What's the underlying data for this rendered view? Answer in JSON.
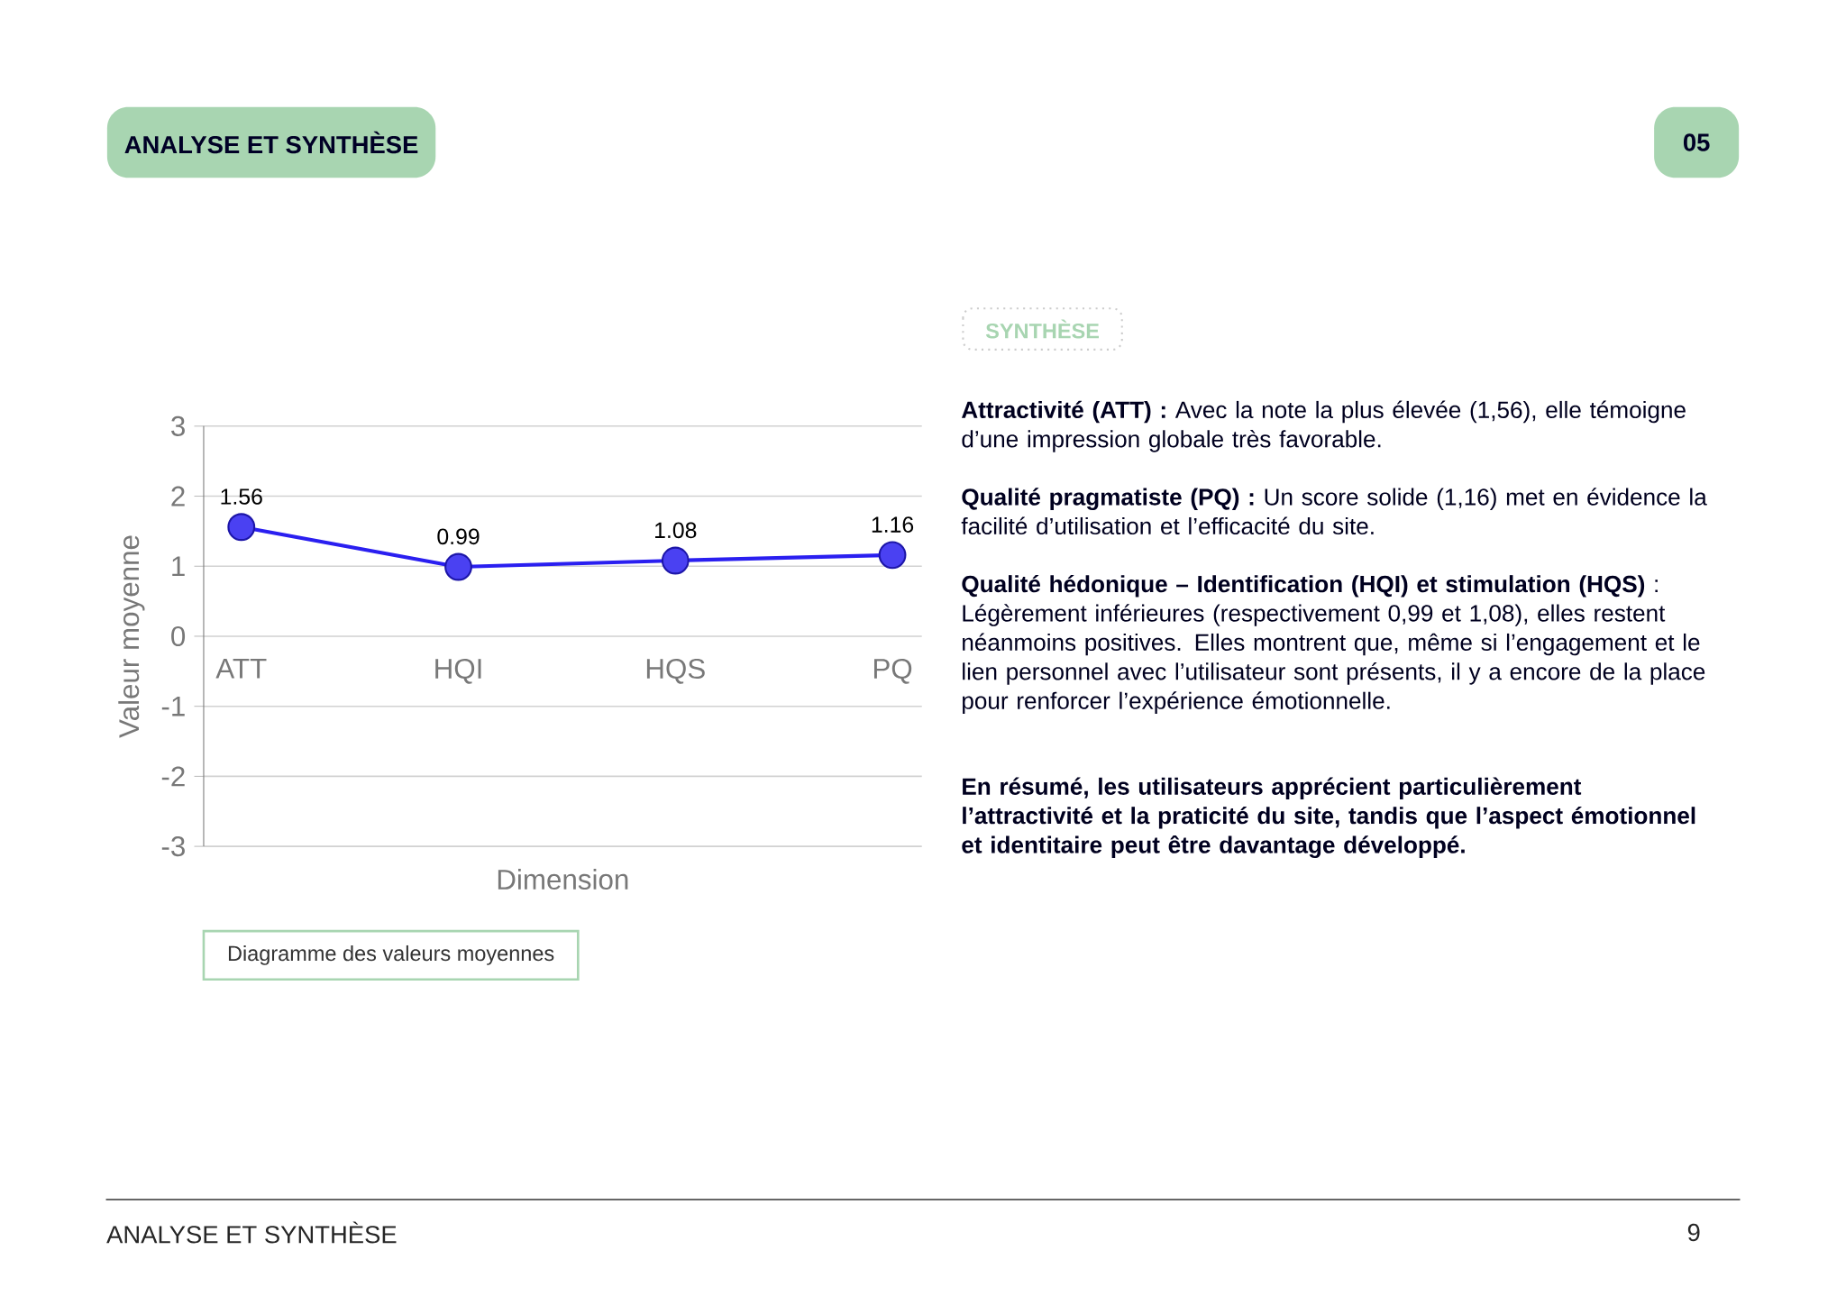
{
  "chart_data": {
    "type": "line",
    "title": "Diagramme des valeurs moyennes",
    "xlabel": "Dimension",
    "ylabel": "Valeur moyenne",
    "categories": [
      "ATT",
      "HQI",
      "HQS",
      "PQ"
    ],
    "values": [
      1.56,
      0.99,
      1.08,
      1.16
    ],
    "color": "#2a1ff0",
    "ylim": [
      -3,
      3
    ],
    "yticks": [
      -3,
      -2,
      -1,
      0,
      1,
      2,
      3
    ],
    "grid": "y",
    "marker": "circle",
    "line_style": "solid",
    "data_labels": true,
    "annotations": [
      "ANALYSE ET SYNTHÈSE",
      "05",
      "SYNTHÈSE",
      "**Attractivité (ATT) :** Avec la note la plus élevée (1,56), elle témoigne d’une impression globale très favorable.",
      "**Qualité pragmatiste (PQ) :** Un score solide (1,16) met en évidence la facilité d’utilisation et l’efficacité du site.",
      "**Qualité hédonique – Identification (HQI) et stimulation (HQS)** : Légèrement inférieures (respectivement 0,99 et 1,08), elles restent néanmoins positives. Elles montrent que, même si l’engagement et le lien personnel avec l’utilisateur sont présents, il y a encore de la place pour renforcer l’expérience émotionnelle.",
      "En résumé, les utilisateurs apprécient particulièrement l’attractivité et la praticité du site, tandis que l’aspect émotionnel et identitaire peut être davantage développé.",
      "ANALYSE ET SYNTHÈSE",
      "9"
    ]
  }
}
